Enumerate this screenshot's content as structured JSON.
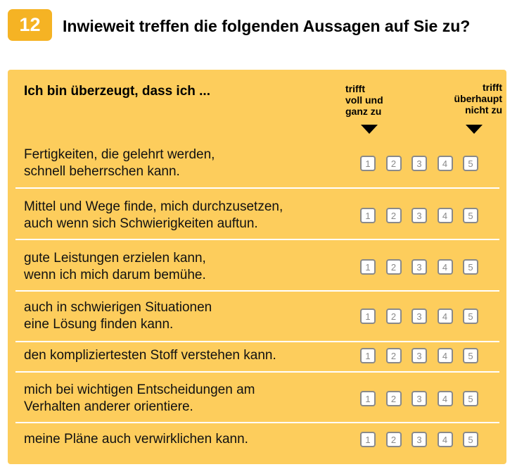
{
  "header": {
    "number": "12",
    "question": "Inwieweit treffen die folgenden Aussagen auf Sie zu?"
  },
  "panel": {
    "intro": "Ich bin überzeugt, dass ich ...",
    "scale_left": [
      "trifft",
      "voll und",
      "ganz zu"
    ],
    "scale_right": [
      "trifft",
      "überhaupt",
      "nicht zu"
    ],
    "options": [
      "1",
      "2",
      "3",
      "4",
      "5"
    ],
    "items": [
      {
        "lines": [
          "Fertigkeiten, die gelehrt werden,",
          "schnell beherrschen kann."
        ]
      },
      {
        "lines": [
          "Mittel und Wege finde, mich durchzusetzen,",
          "auch wenn sich Schwierigkeiten auftun."
        ]
      },
      {
        "lines": [
          "gute Leistungen erzielen kann,",
          "wenn ich mich darum bemühe."
        ]
      },
      {
        "lines": [
          "auch in schwierigen Situationen",
          "eine Lösung finden kann."
        ]
      },
      {
        "lines": [
          "den kompliziertesten Stoff verstehen kann."
        ]
      },
      {
        "lines": [
          "mich bei wichtigen Entscheidungen am",
          "Verhalten anderer orientiere."
        ]
      },
      {
        "lines": [
          "meine Pläne auch verwirklichen kann."
        ]
      }
    ]
  },
  "colors": {
    "accent": "#f5b324",
    "panel": "#fdcd5c",
    "box_border": "#8a8a8a"
  }
}
